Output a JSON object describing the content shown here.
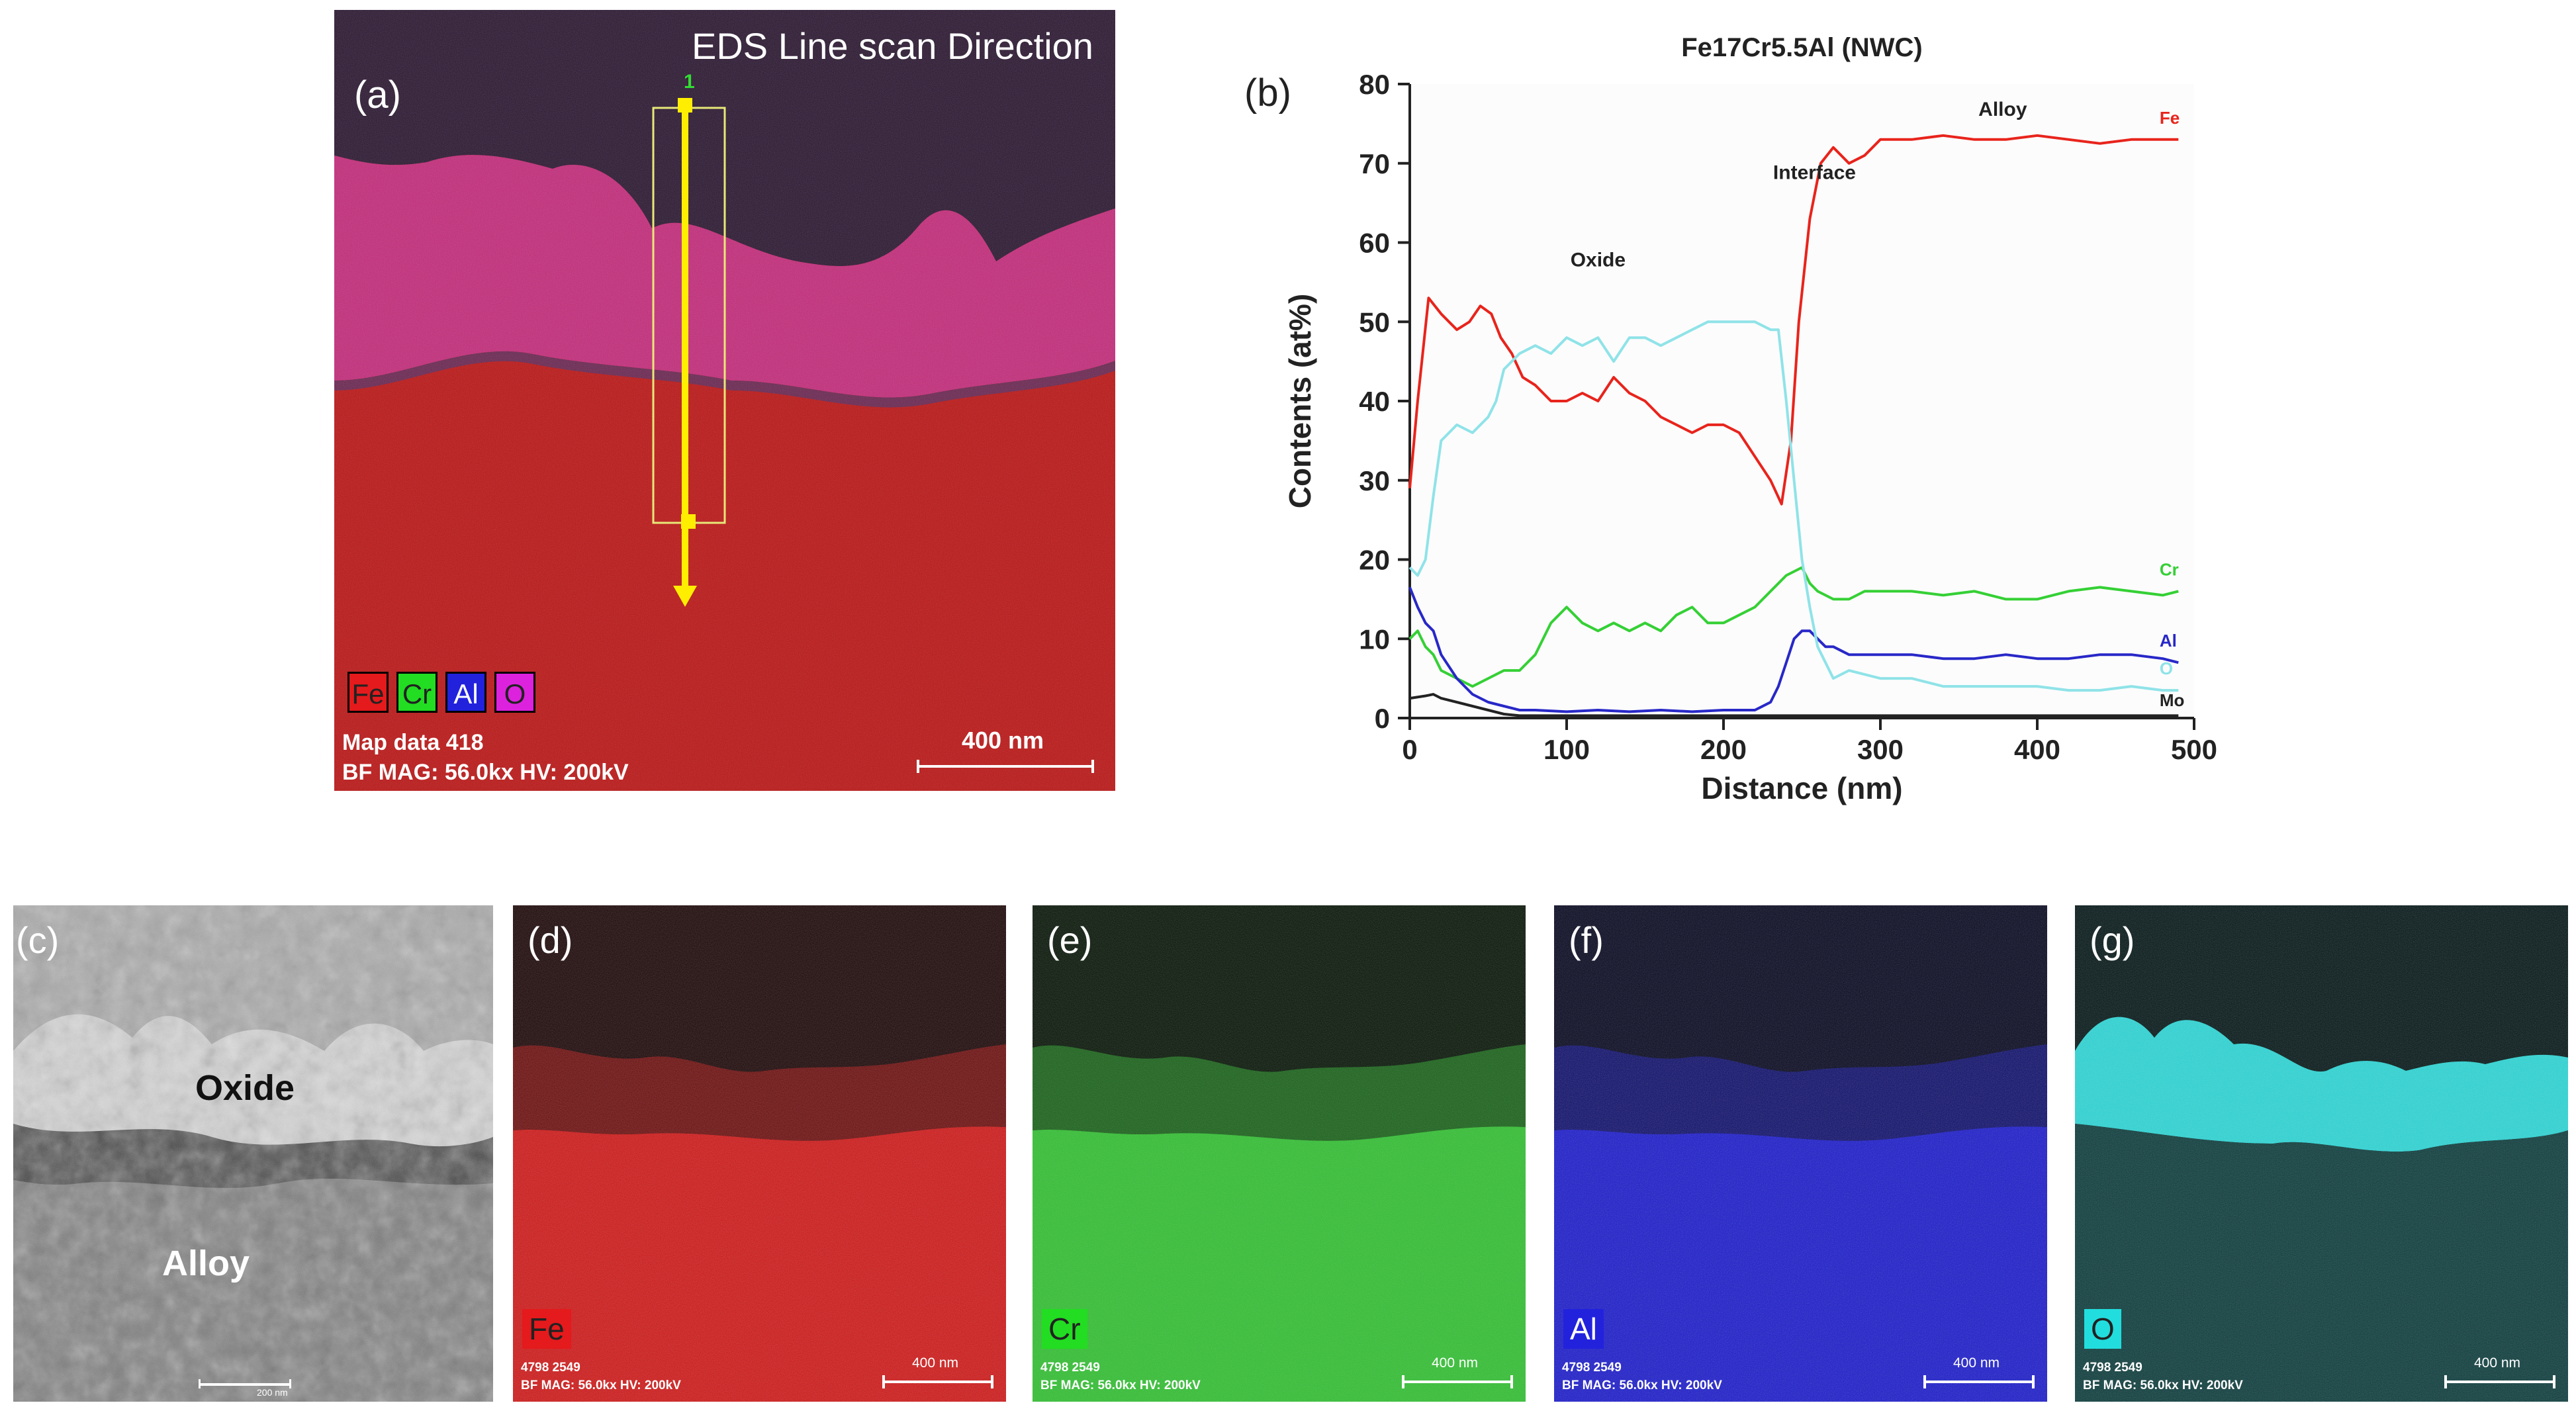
{
  "panel_a": {
    "label": "(a)",
    "title": "EDS Line scan Direction",
    "marker": "1",
    "legend": [
      {
        "text": "Fe",
        "bg": "#e41a1c",
        "fg": "#222222"
      },
      {
        "text": "Cr",
        "bg": "#22dd22",
        "fg": "#222222"
      },
      {
        "text": "Al",
        "bg": "#2222dd",
        "fg": "#ffffff"
      },
      {
        "text": "O",
        "bg": "#dd22dd",
        "fg": "#222222"
      }
    ],
    "meta1": "Map data 418",
    "meta2": "BF  MAG: 56.0kx  HV: 200kV",
    "scale": "400 nm"
  },
  "panel_b": {
    "label": "(b)"
  },
  "chart_data": {
    "type": "line",
    "title": "Fe17Cr5.5Al (NWC)",
    "xlabel": "Distance (nm)",
    "ylabel": "Contents (at%)",
    "xlim": [
      0,
      500
    ],
    "ylim": [
      0,
      80
    ],
    "xticks": [
      0,
      100,
      200,
      300,
      400,
      500
    ],
    "yticks": [
      0,
      10,
      20,
      30,
      40,
      50,
      60,
      70,
      80
    ],
    "annotations": [
      {
        "text": "Oxide",
        "x": 120,
        "y": 57
      },
      {
        "text": "Interface",
        "x": 258,
        "y": 68
      },
      {
        "text": "Alloy",
        "x": 378,
        "y": 76
      }
    ],
    "series": [
      {
        "name": "Fe",
        "color": "#e8241c",
        "label_at": [
          478,
          75
        ],
        "x": [
          0,
          5,
          12,
          20,
          30,
          38,
          45,
          52,
          58,
          65,
          72,
          80,
          90,
          100,
          110,
          120,
          130,
          140,
          150,
          160,
          170,
          180,
          190,
          200,
          210,
          220,
          230,
          237,
          243,
          248,
          255,
          262,
          270,
          280,
          290,
          300,
          320,
          340,
          360,
          380,
          400,
          420,
          440,
          460,
          480,
          490
        ],
        "y": [
          29,
          40,
          53,
          51,
          49,
          50,
          52,
          51,
          48,
          46,
          43,
          42,
          40,
          40,
          41,
          40,
          43,
          41,
          40,
          38,
          37,
          36,
          37,
          37,
          36,
          33,
          30,
          27,
          35,
          50,
          63,
          70,
          72,
          70,
          71,
          73,
          73,
          73.5,
          73,
          73,
          73.5,
          73,
          72.5,
          73,
          73,
          73
        ]
      },
      {
        "name": "Cr",
        "color": "#35d035",
        "label_at": [
          478,
          18
        ],
        "x": [
          0,
          5,
          10,
          15,
          20,
          30,
          40,
          50,
          60,
          70,
          80,
          90,
          100,
          110,
          120,
          130,
          140,
          150,
          160,
          170,
          180,
          190,
          200,
          210,
          220,
          230,
          240,
          250,
          255,
          260,
          270,
          280,
          290,
          300,
          320,
          340,
          360,
          380,
          400,
          420,
          440,
          460,
          480,
          490
        ],
        "y": [
          10,
          11,
          9,
          8,
          6,
          5,
          4,
          5,
          6,
          6,
          8,
          12,
          14,
          12,
          11,
          12,
          11,
          12,
          11,
          13,
          14,
          12,
          12,
          13,
          14,
          16,
          18,
          19,
          17,
          16,
          15,
          15,
          16,
          16,
          16,
          15.5,
          16,
          15,
          15,
          16,
          16.5,
          16,
          15.5,
          16
        ]
      },
      {
        "name": "Al",
        "color": "#2828c8",
        "label_at": [
          478,
          9
        ],
        "x": [
          0,
          5,
          10,
          15,
          20,
          30,
          40,
          50,
          60,
          70,
          80,
          100,
          120,
          140,
          160,
          180,
          200,
          220,
          230,
          235,
          240,
          245,
          250,
          255,
          260,
          265,
          270,
          280,
          300,
          320,
          340,
          360,
          380,
          400,
          420,
          440,
          460,
          480,
          490
        ],
        "y": [
          16.5,
          14,
          12,
          11,
          8,
          5,
          3,
          2,
          1.5,
          1,
          1,
          0.8,
          1,
          0.8,
          1,
          0.8,
          1,
          1,
          2,
          4,
          7,
          10,
          11,
          11,
          10,
          9,
          9,
          8,
          8,
          8,
          7.5,
          7.5,
          8,
          7.5,
          7.5,
          8,
          8,
          7.5,
          7
        ]
      },
      {
        "name": "O",
        "color": "#8fe3e8",
        "label_at": [
          478,
          5.5
        ],
        "x": [
          0,
          5,
          10,
          15,
          20,
          25,
          30,
          40,
          50,
          55,
          60,
          70,
          80,
          90,
          100,
          110,
          120,
          130,
          140,
          150,
          160,
          170,
          180,
          190,
          200,
          210,
          220,
          230,
          235,
          240,
          245,
          250,
          255,
          260,
          265,
          270,
          280,
          300,
          320,
          340,
          360,
          380,
          400,
          420,
          440,
          460,
          480,
          490
        ],
        "y": [
          19,
          18,
          20,
          28,
          35,
          36,
          37,
          36,
          38,
          40,
          44,
          46,
          47,
          46,
          48,
          47,
          48,
          45,
          48,
          48,
          47,
          48,
          49,
          50,
          50,
          50,
          50,
          49,
          49,
          40,
          30,
          20,
          14,
          9,
          7,
          5,
          6,
          5,
          5,
          4,
          4,
          4,
          4,
          3.5,
          3.5,
          4,
          3.5,
          3.5
        ]
      },
      {
        "name": "Mo",
        "color": "#222222",
        "label_at": [
          478,
          1.5
        ],
        "x": [
          0,
          10,
          15,
          20,
          30,
          40,
          50,
          60,
          70,
          100,
          200,
          300,
          400,
          490
        ],
        "y": [
          2.5,
          2.8,
          3,
          2.5,
          2,
          1.5,
          1,
          0.5,
          0.3,
          0.3,
          0.3,
          0.3,
          0.3,
          0.3
        ]
      }
    ]
  },
  "panel_c": {
    "label": "(c)",
    "oxide": "Oxide",
    "alloy": "Alloy",
    "scale": "200 nm"
  },
  "maps": [
    {
      "id": "d",
      "label": "(d)",
      "element": "Fe",
      "badge_bg": "#e41a1c",
      "badge_fg": "#222222",
      "top_color": "#1a0405",
      "bottom_color": "#d01616",
      "id_text": "4798 2549",
      "meta": "BF  MAG: 56.0kx  HV: 200kV",
      "scale": "400 nm"
    },
    {
      "id": "e",
      "label": "(e)",
      "element": "Cr",
      "badge_bg": "#22dd22",
      "badge_fg": "#222222",
      "top_color": "#031203",
      "bottom_color": "#2fc02f",
      "id_text": "4798 2549",
      "meta": "BF  MAG: 56.0kx  HV: 200kV",
      "scale": "400 nm"
    },
    {
      "id": "f",
      "label": "(f)",
      "element": "Al",
      "badge_bg": "#2222dd",
      "badge_fg": "#ffffff",
      "top_color": "#05051e",
      "bottom_color": "#1a1acc",
      "id_text": "4798 2549",
      "meta": "BF  MAG: 56.0kx  HV: 200kV",
      "scale": "400 nm"
    },
    {
      "id": "g",
      "label": "(g)",
      "element": "O",
      "badge_bg": "#22dddd",
      "badge_fg": "#222222",
      "top_color": "#021414",
      "bottom_color": "#0a3a3a",
      "id_text": "4798 2549",
      "meta": "BF  MAG: 56.0kx  HV: 200kV",
      "scale": "400 nm"
    }
  ]
}
